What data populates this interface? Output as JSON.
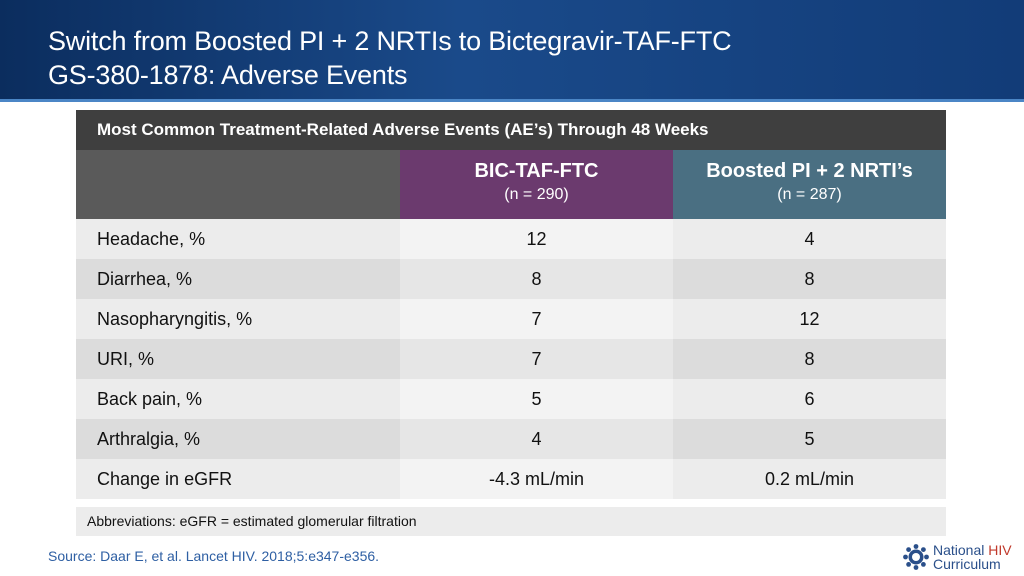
{
  "slide": {
    "title_line1": "Switch from Boosted PI + 2 NRTIs to Bictegravir-TAF-FTC",
    "title_line2": "GS-380-1878: Adverse Events"
  },
  "table": {
    "caption": "Most Common Treatment-Related Adverse Events (AE’s) Through 48 Weeks",
    "columns": [
      {
        "label": "BIC-TAF-FTC",
        "n": "(n = 290)",
        "color": "#6b3a6e"
      },
      {
        "label": "Boosted PI + 2 NRTI’s",
        "n": "(n = 287)",
        "color": "#4a6f82"
      }
    ],
    "rows": [
      {
        "label": "Headache, %",
        "v1": "12",
        "v2": "4"
      },
      {
        "label": "Diarrhea, %",
        "v1": "8",
        "v2": "8"
      },
      {
        "label": "Nasopharyngitis, %",
        "v1": "7",
        "v2": "12"
      },
      {
        "label": "URI, %",
        "v1": "7",
        "v2": "8"
      },
      {
        "label": "Back pain, %",
        "v1": "5",
        "v2": "6"
      },
      {
        "label": "Arthralgia, %",
        "v1": "4",
        "v2": "5"
      },
      {
        "label": "Change in eGFR",
        "v1": "-4.3 mL/min",
        "v2": "0.2 mL/min"
      }
    ]
  },
  "abbreviations": "Abbreviations: eGFR = estimated glomerular filtration",
  "source": "Source: Daar E, et al. Lancet HIV. 2018;5:e347-e356.",
  "logo": {
    "word1": "National",
    "word2": "HIV",
    "word3": "Curriculum",
    "icon": "gear-people-icon"
  }
}
